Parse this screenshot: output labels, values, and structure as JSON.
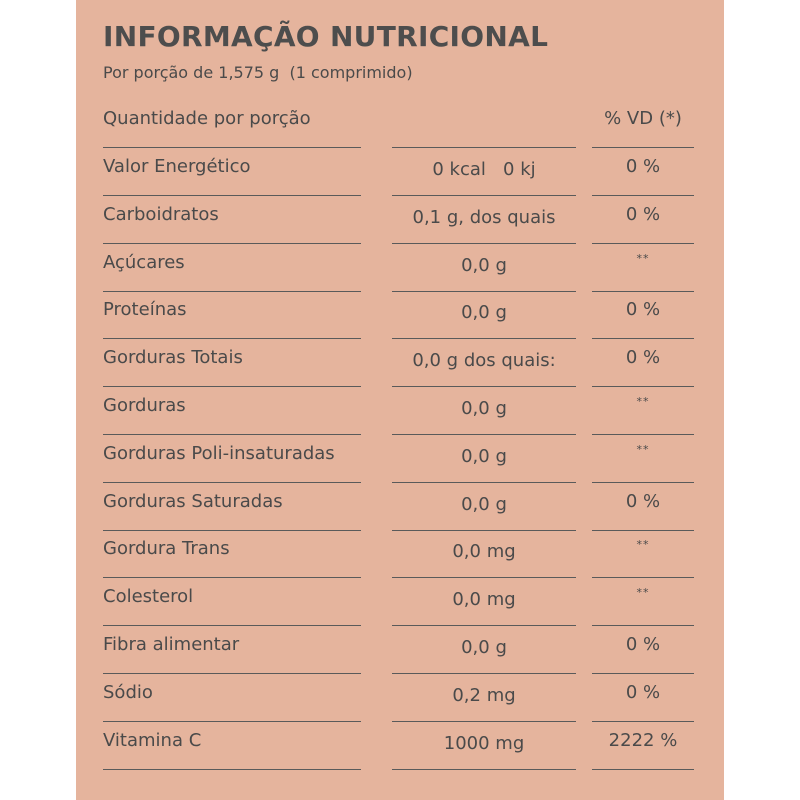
{
  "title": "INFORMAÇÃO NUTRICIONAL",
  "subtitle": "Por porção de 1,575 g  (1 comprimido)",
  "header": {
    "name": "Quantidade por porção",
    "amount": "",
    "vd": "% VD (*)"
  },
  "rows": [
    {
      "name": "Valor Energético",
      "amount": "0 kcal   0 kj",
      "vd": "0 %"
    },
    {
      "name": "Carboidratos",
      "amount": "0,1 g, dos quais",
      "vd": "0 %"
    },
    {
      "name": "Açúcares",
      "amount": "0,0 g",
      "vd": "**"
    },
    {
      "name": "Proteínas",
      "amount": "0,0 g",
      "vd": "0 %"
    },
    {
      "name": "Gorduras Totais",
      "amount": "0,0 g dos quais:",
      "vd": "0 %"
    },
    {
      "name": "Gorduras",
      "amount": "0,0 g",
      "vd": "**"
    },
    {
      "name": "Gorduras Poli-insaturadas",
      "amount": "0,0 g",
      "vd": "**"
    },
    {
      "name": "Gorduras Saturadas",
      "amount": "0,0 g",
      "vd": "0 %"
    },
    {
      "name": "Gordura Trans",
      "amount": "0,0 mg",
      "vd": "**"
    },
    {
      "name": "Colesterol",
      "amount": "0,0 mg",
      "vd": "**"
    },
    {
      "name": "Fibra alimentar",
      "amount": "0,0 g",
      "vd": "0 %"
    },
    {
      "name": "Sódio",
      "amount": "0,2 mg",
      "vd": "0 %"
    },
    {
      "name": "Vitamina C",
      "amount": "1000 mg",
      "vd": "2222 %"
    }
  ],
  "colors": {
    "background": "#e5b49d",
    "text": "#4a4a4a",
    "rule": "#5a5a5a"
  }
}
